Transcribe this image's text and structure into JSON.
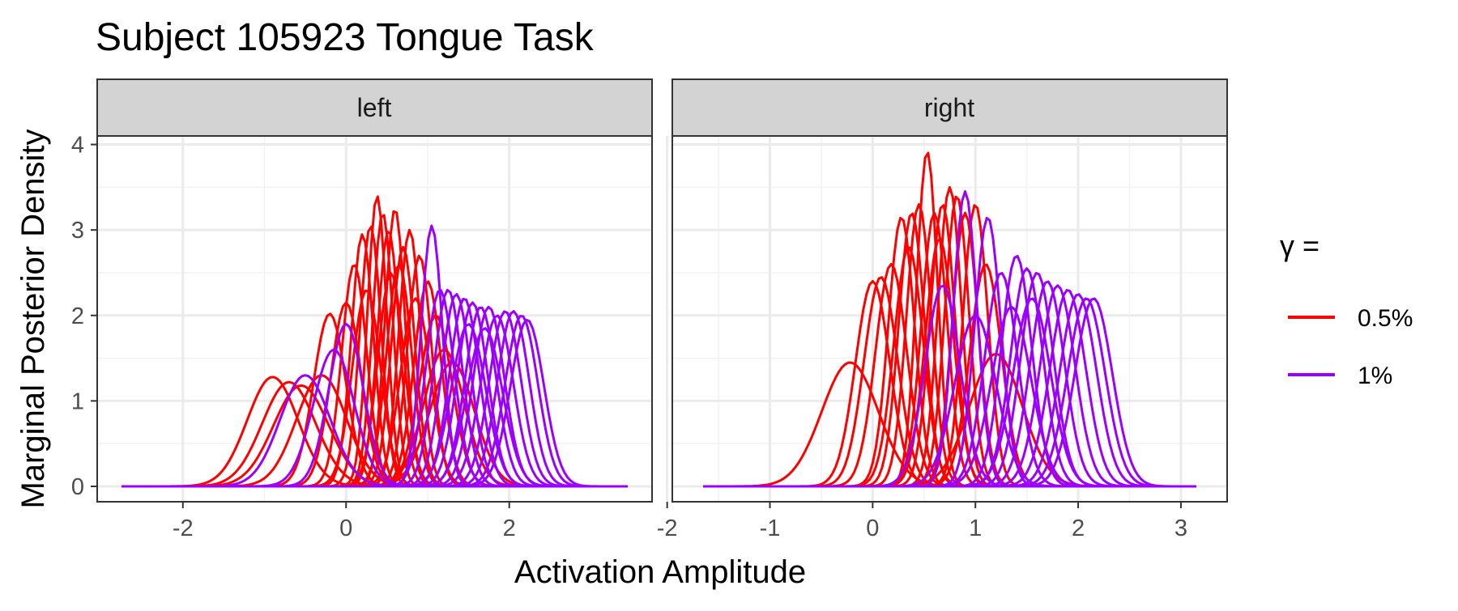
{
  "chart_data": {
    "type": "line",
    "title": "Subject 105923 Tongue Task",
    "xlabel": "Activation Amplitude",
    "ylabel": "Marginal Posterior Density",
    "grid": true,
    "legend_position": "right",
    "legend": {
      "title": "γ =",
      "entries": [
        {
          "label": "0.5%",
          "color": "#FF0000"
        },
        {
          "label": "1%",
          "color": "#9B00FF"
        }
      ]
    },
    "colors": {
      "series_a": "#FF0000",
      "series_b": "#9B00FF"
    },
    "panels": [
      {
        "strip": "left",
        "xlim": [
          -3.05,
          3.75
        ],
        "ylim": [
          -0.18,
          4.1
        ],
        "xticks": [
          -2,
          0,
          2
        ],
        "xtick_labels": [
          "-2",
          "0",
          "2"
        ],
        "yticks": [
          0,
          1,
          2,
          3,
          4
        ],
        "ytick_labels": [
          "0",
          "1",
          "2",
          "3",
          "4"
        ],
        "series": [
          {
            "name": "0.5%",
            "color": "#FF0000",
            "curves": [
              {
                "mean": -0.9,
                "peak": 1.28
              },
              {
                "mean": -0.7,
                "peak": 1.22
              },
              {
                "mean": -0.55,
                "peak": 1.18
              },
              {
                "mean": -0.3,
                "peak": 1.3
              },
              {
                "mean": -0.2,
                "peak": 2.02
              },
              {
                "mean": 0.0,
                "peak": 2.15
              },
              {
                "mean": 0.1,
                "peak": 2.6
              },
              {
                "mean": 0.2,
                "peak": 2.95
              },
              {
                "mean": 0.3,
                "peak": 3.05
              },
              {
                "mean": 0.38,
                "peak": 3.4
              },
              {
                "mean": 0.45,
                "peak": 3.2
              },
              {
                "mean": 0.52,
                "peak": 3.0
              },
              {
                "mean": 0.6,
                "peak": 3.25
              },
              {
                "mean": 0.7,
                "peak": 2.8
              },
              {
                "mean": 0.78,
                "peak": 3.0
              },
              {
                "mean": 0.9,
                "peak": 2.7
              },
              {
                "mean": 1.0,
                "peak": 2.4
              },
              {
                "mean": 1.1,
                "peak": 2.0
              },
              {
                "mean": 1.2,
                "peak": 1.6
              },
              {
                "mean": 1.3,
                "peak": 1.45
              },
              {
                "mean": 0.55,
                "peak": 2.5
              },
              {
                "mean": 0.25,
                "peak": 2.3
              },
              {
                "mean": 0.65,
                "peak": 2.6
              },
              {
                "mean": 0.85,
                "peak": 2.2
              }
            ]
          },
          {
            "name": "1%",
            "color": "#9B00FF",
            "curves": [
              {
                "mean": -0.5,
                "peak": 1.3
              },
              {
                "mean": -0.15,
                "peak": 1.6
              },
              {
                "mean": 0.0,
                "peak": 1.9
              },
              {
                "mean": 1.05,
                "peak": 3.05
              },
              {
                "mean": 1.15,
                "peak": 2.3
              },
              {
                "mean": 1.25,
                "peak": 2.3
              },
              {
                "mean": 1.35,
                "peak": 2.25
              },
              {
                "mean": 1.45,
                "peak": 2.2
              },
              {
                "mean": 1.55,
                "peak": 2.15
              },
              {
                "mean": 1.65,
                "peak": 2.1
              },
              {
                "mean": 1.75,
                "peak": 2.1
              },
              {
                "mean": 1.85,
                "peak": 2.0
              },
              {
                "mean": 1.95,
                "peak": 2.05
              },
              {
                "mean": 2.05,
                "peak": 2.05
              },
              {
                "mean": 2.15,
                "peak": 2.0
              },
              {
                "mean": 2.22,
                "peak": 1.95
              },
              {
                "mean": 1.5,
                "peak": 1.9
              },
              {
                "mean": 1.7,
                "peak": 1.85
              }
            ]
          }
        ]
      },
      {
        "strip": "right",
        "xlim": [
          -1.95,
          3.45
        ],
        "ylim": [
          -0.18,
          4.1
        ],
        "xticks": [
          -2,
          -1,
          0,
          1,
          2,
          3
        ],
        "xtick_labels": [
          "-2",
          "-1",
          "0",
          "1",
          "2",
          "3"
        ],
        "yticks": [
          0,
          1,
          2,
          3,
          4
        ],
        "ytick_labels": [
          "0",
          "1",
          "2",
          "3",
          "4"
        ],
        "series": [
          {
            "name": "0.5%",
            "color": "#FF0000",
            "curves": [
              {
                "mean": -0.22,
                "peak": 1.45
              },
              {
                "mean": 0.0,
                "peak": 2.4
              },
              {
                "mean": 0.08,
                "peak": 2.45
              },
              {
                "mean": 0.18,
                "peak": 2.6
              },
              {
                "mean": 0.28,
                "peak": 3.15
              },
              {
                "mean": 0.38,
                "peak": 3.2
              },
              {
                "mean": 0.45,
                "peak": 3.3
              },
              {
                "mean": 0.53,
                "peak": 3.92
              },
              {
                "mean": 0.6,
                "peak": 3.2
              },
              {
                "mean": 0.68,
                "peak": 3.3
              },
              {
                "mean": 0.75,
                "peak": 3.5
              },
              {
                "mean": 0.82,
                "peak": 3.4
              },
              {
                "mean": 0.9,
                "peak": 3.2
              },
              {
                "mean": 1.0,
                "peak": 3.3
              },
              {
                "mean": 1.1,
                "peak": 2.6
              },
              {
                "mean": 1.2,
                "peak": 1.55
              },
              {
                "mean": 0.35,
                "peak": 2.8
              },
              {
                "mean": 0.65,
                "peak": 2.9
              }
            ]
          },
          {
            "name": "1%",
            "color": "#9B00FF",
            "curves": [
              {
                "mean": 0.68,
                "peak": 2.35
              },
              {
                "mean": 0.9,
                "peak": 3.45
              },
              {
                "mean": 1.12,
                "peak": 3.15
              },
              {
                "mean": 1.0,
                "peak": 2.0
              },
              {
                "mean": 1.25,
                "peak": 2.5
              },
              {
                "mean": 1.4,
                "peak": 2.7
              },
              {
                "mean": 1.5,
                "peak": 2.55
              },
              {
                "mean": 1.6,
                "peak": 2.5
              },
              {
                "mean": 1.7,
                "peak": 2.4
              },
              {
                "mean": 1.8,
                "peak": 2.35
              },
              {
                "mean": 1.9,
                "peak": 2.3
              },
              {
                "mean": 2.0,
                "peak": 2.25
              },
              {
                "mean": 2.08,
                "peak": 2.2
              },
              {
                "mean": 2.15,
                "peak": 2.2
              },
              {
                "mean": 1.55,
                "peak": 2.2
              },
              {
                "mean": 1.35,
                "peak": 2.1
              }
            ]
          }
        ]
      }
    ]
  }
}
